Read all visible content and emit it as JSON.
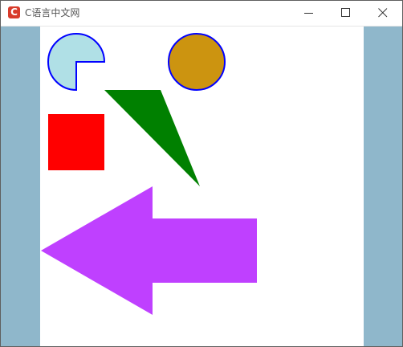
{
  "window": {
    "app_icon_glyph": "C",
    "title": "C语言中文网",
    "icons": {
      "app": "c-logo-icon",
      "minimize": "minimize-icon",
      "maximize": "maximize-icon",
      "close": "close-icon"
    }
  },
  "colors": {
    "client_background": "#8fb7cb",
    "canvas_background": "#ffffff",
    "pie_fill": "#b0e0e6",
    "pie_stroke": "#0000ff",
    "circle_fill": "#cc9410",
    "circle_stroke": "#0000ff",
    "triangle_fill": "#008000",
    "square_fill": "#ff0000",
    "arrow_fill": "#bf40ff"
  },
  "shapes": [
    {
      "name": "pie-shape",
      "type": "pie"
    },
    {
      "name": "circle-shape",
      "type": "circle"
    },
    {
      "name": "triangle-shape",
      "type": "triangle"
    },
    {
      "name": "square-shape",
      "type": "rectangle"
    },
    {
      "name": "arrow-shape",
      "type": "left-arrow"
    }
  ]
}
